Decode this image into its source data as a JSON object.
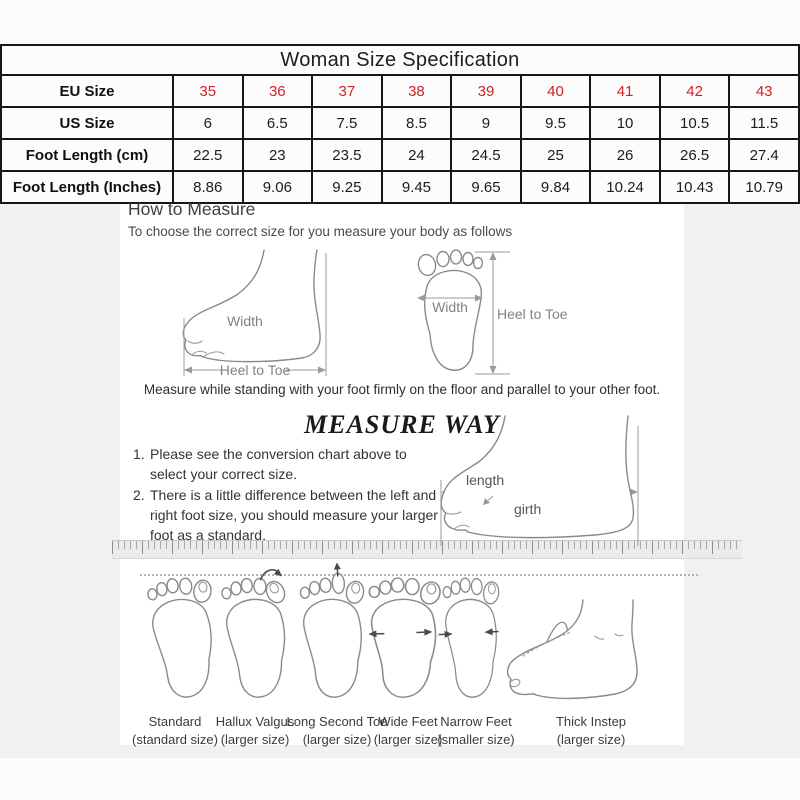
{
  "size_table": {
    "title": "Woman Size Specification",
    "accent_color": "#cf2121",
    "rows": [
      {
        "label": "EU Size",
        "values": [
          "35",
          "36",
          "37",
          "38",
          "39",
          "40",
          "41",
          "42",
          "43"
        ],
        "highlight": true
      },
      {
        "label": "US Size",
        "values": [
          "6",
          "6.5",
          "7.5",
          "8.5",
          "9",
          "9.5",
          "10",
          "10.5",
          "11.5"
        ],
        "highlight": false
      },
      {
        "label": "Foot Length (cm)",
        "values": [
          "22.5",
          "23",
          "23.5",
          "24",
          "24.5",
          "25",
          "26",
          "26.5",
          "27.4"
        ],
        "highlight": false
      },
      {
        "label": "Foot Length (Inches)",
        "values": [
          "8.86",
          "9.06",
          "9.25",
          "9.45",
          "9.65",
          "9.84",
          "10.24",
          "10.43",
          "10.79"
        ],
        "highlight": false
      }
    ]
  },
  "how_to_measure": {
    "heading": "How to Measure",
    "subtitle": "To choose the correct size for you measure your body as follows",
    "width_label": "Width",
    "heel_to_toe_label": "Heel to Toe",
    "footnote": "Measure while standing with your foot firmly on the floor and parallel to your other foot."
  },
  "measure_way": {
    "heading": "MEASURE WAY",
    "steps": [
      "Please see the conversion chart above to select your correct size.",
      "There is a little difference between the left and right foot size, you should measure your larger foot as a standard."
    ],
    "length_label": "length",
    "girth_label": "girth"
  },
  "foot_types": [
    {
      "name": "Standard",
      "note": "(standard size)"
    },
    {
      "name": "Hallux Valgus",
      "note": "(larger size)"
    },
    {
      "name": "Long Second Toe",
      "note": "(larger size)"
    },
    {
      "name": "Wide Feet",
      "note": "(larger size)"
    },
    {
      "name": "Narrow Feet",
      "note": "(smaller size)"
    },
    {
      "name": "Thick Instep",
      "note": "(larger size)"
    }
  ]
}
